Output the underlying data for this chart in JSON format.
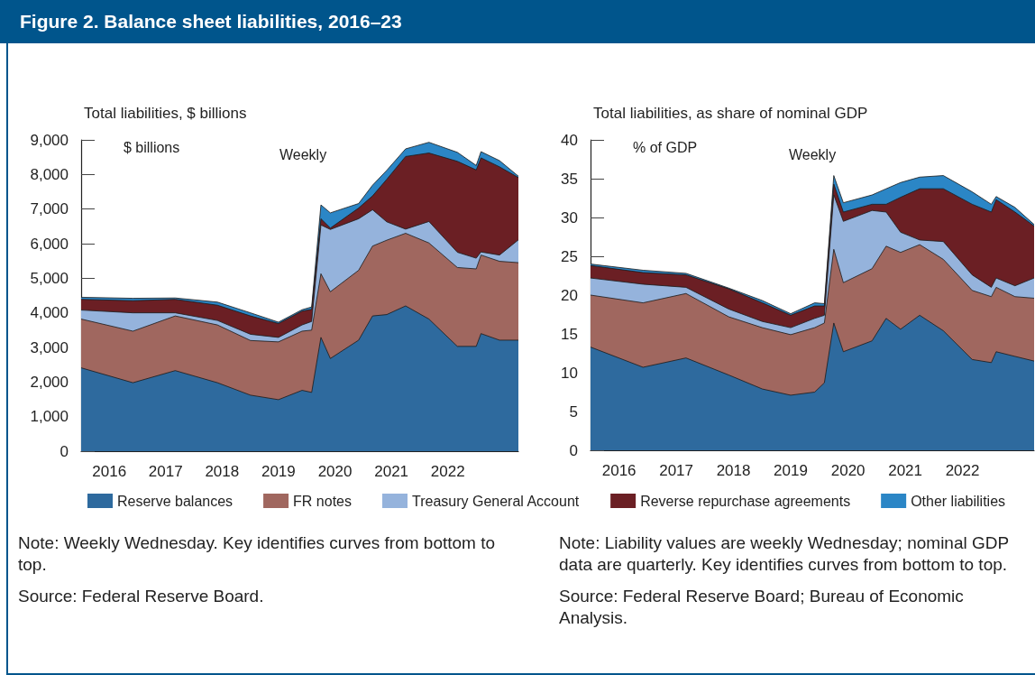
{
  "chart_data": [
    {
      "type": "area",
      "title": "Figure 2. Balance sheet liabilities, 2016–23",
      "subtitle": "Total liabilities, $ billions",
      "ylabel": "$ billions",
      "stacked": true,
      "legend": "bottom",
      "grid": false,
      "annotations": [
        "Weekly",
        "Note: Weekly Wednesday. Key identifies curves from bottom to top.",
        "Source: Federal Reserve Board."
      ],
      "x": [
        "2016-01",
        "2016-12",
        "2017-09",
        "2018-06",
        "2019-01",
        "2019-07",
        "2019-12",
        "2020-02",
        "2020-04",
        "2020-06",
        "2020-12",
        "2021-03",
        "2021-06",
        "2021-10",
        "2022-03",
        "2022-09",
        "2023-01",
        "2023-02",
        "2023-06",
        "2023-10"
      ],
      "xlim": [
        "2016-01",
        "2023-10"
      ],
      "xticks": [
        {
          "value": "2016-07-01",
          "label": "2016"
        },
        {
          "value": "2017-07-01",
          "label": "2017"
        },
        {
          "value": "2018-07-01",
          "label": "2018"
        },
        {
          "value": "2019-07-01",
          "label": "2019"
        },
        {
          "value": "2020-07-01",
          "label": "2020"
        },
        {
          "value": "2021-07-01",
          "label": "2021"
        },
        {
          "value": "2022-07-01",
          "label": "2022"
        },
        {
          "value": "2017-01-01",
          "label": null
        },
        {
          "value": "2018-01-01",
          "label": null
        },
        {
          "value": "2019-01-01",
          "label": null
        },
        {
          "value": "2020-01-01",
          "label": null
        },
        {
          "value": "2021-01-01",
          "label": null
        },
        {
          "value": "2022-01-01",
          "label": null
        },
        {
          "value": "2023-01-01",
          "label": null
        }
      ],
      "ylim": [
        0,
        9000
      ],
      "yticks": [
        0,
        {
          "value": 1000,
          "label": "1,000"
        },
        {
          "value": 2000,
          "label": "2,000"
        },
        {
          "value": 3000,
          "label": "3,000"
        },
        {
          "value": 4000,
          "label": "4,000"
        },
        {
          "value": 5000,
          "label": "5,000"
        },
        {
          "value": 6000,
          "label": "6,000"
        },
        {
          "value": 7000,
          "label": "7,000"
        },
        {
          "value": 8000,
          "label": "8,000"
        },
        {
          "value": 9000,
          "label": "9,000"
        }
      ],
      "series": [
        {
          "name": "Reserve balances",
          "color": "#2e6a9e",
          "values": [
            2410,
            1980,
            2330,
            1980,
            1620,
            1490,
            1760,
            1700,
            3290,
            2680,
            3210,
            3910,
            3950,
            4200,
            3820,
            3030,
            3030,
            3400,
            3210,
            3210
          ]
        },
        {
          "name": "FR notes",
          "color": "#a0675f",
          "values": [
            1410,
            1490,
            1580,
            1670,
            1580,
            1670,
            1710,
            1800,
            1840,
            1930,
            2020,
            2020,
            2150,
            2100,
            2200,
            2280,
            2240,
            2270,
            2280,
            2240
          ]
        },
        {
          "name": "Treasury General Account",
          "color": "#95b3dc",
          "values": [
            260,
            530,
            90,
            130,
            180,
            130,
            180,
            250,
            1410,
            1800,
            1490,
            1050,
            530,
            120,
            620,
            440,
            310,
            90,
            180,
            660
          ]
        },
        {
          "name": "Reverse repurchase agreements",
          "color": "#6b1f24",
          "values": [
            310,
            350,
            390,
            440,
            530,
            400,
            400,
            350,
            180,
            40,
            310,
            400,
            1230,
            2100,
            1980,
            2630,
            2550,
            2720,
            2550,
            1800
          ]
        },
        {
          "name": "Other liabilities",
          "color": "#2b86c6",
          "values": [
            60,
            70,
            40,
            90,
            90,
            40,
            40,
            70,
            400,
            440,
            130,
            310,
            260,
            220,
            310,
            260,
            130,
            180,
            180,
            40
          ]
        }
      ]
    },
    {
      "type": "area",
      "subtitle": "Total liabilities, as share of nominal GDP",
      "ylabel": "% of GDP",
      "stacked": true,
      "grid": false,
      "annotations": [
        "Weekly",
        "Note: Liability values are weekly Wednesday; nominal GDP data are quarterly. Key identifies curves from bottom to top.",
        "Source: Federal Reserve Board; Bureau of Economic Analysis."
      ],
      "x": [
        "2016-01",
        "2016-12",
        "2017-09",
        "2018-06",
        "2019-01",
        "2019-07",
        "2019-12",
        "2020-02",
        "2020-04",
        "2020-06",
        "2020-12",
        "2021-03",
        "2021-06",
        "2021-10",
        "2022-03",
        "2022-09",
        "2023-01",
        "2023-02",
        "2023-06",
        "2023-10"
      ],
      "xlim": [
        "2016-01",
        "2023-10"
      ],
      "xticks": [
        {
          "value": "2016-07-01",
          "label": "2016"
        },
        {
          "value": "2017-07-01",
          "label": "2017"
        },
        {
          "value": "2018-07-01",
          "label": "2018"
        },
        {
          "value": "2019-07-01",
          "label": "2019"
        },
        {
          "value": "2020-07-01",
          "label": "2020"
        },
        {
          "value": "2021-07-01",
          "label": "2021"
        },
        {
          "value": "2022-07-01",
          "label": "2022"
        },
        {
          "value": "2017-01-01",
          "label": null
        },
        {
          "value": "2018-01-01",
          "label": null
        },
        {
          "value": "2019-01-01",
          "label": null
        },
        {
          "value": "2020-01-01",
          "label": null
        },
        {
          "value": "2021-01-01",
          "label": null
        },
        {
          "value": "2022-01-01",
          "label": null
        },
        {
          "value": "2023-01-01",
          "label": null
        }
      ],
      "ylim": [
        0,
        40
      ],
      "yticks": [
        0,
        5,
        10,
        15,
        20,
        25,
        30,
        35,
        40
      ],
      "series": [
        {
          "color": "#2e6a9e",
          "values": [
            13.3,
            10.7,
            11.9,
            9.7,
            7.9,
            7.1,
            7.5,
            8.7,
            16.4,
            12.7,
            14.1,
            17.0,
            15.6,
            17.4,
            15.4,
            11.7,
            11.3,
            12.7,
            12.1,
            11.5
          ]
        },
        {
          "color": "#a0675f",
          "values": [
            6.7,
            8.3,
            8.3,
            7.5,
            7.9,
            7.8,
            8.3,
            7.7,
            9.5,
            8.9,
            9.3,
            9.3,
            9.9,
            9.1,
            9.2,
            8.9,
            8.5,
            8.3,
            7.7,
            8.1
          ]
        },
        {
          "color": "#95b3dc",
          "values": [
            2.2,
            2.4,
            0.8,
            1.0,
            0.8,
            0.9,
            1.2,
            1.0,
            7.0,
            7.9,
            7.5,
            4.4,
            2.6,
            0.6,
            2.3,
            2.0,
            1.2,
            1.2,
            1.4,
            2.6
          ]
        },
        {
          "color": "#6b1f24",
          "values": [
            1.6,
            1.5,
            1.6,
            2.6,
            2.4,
            1.6,
            1.6,
            1.2,
            1.4,
            1.2,
            0.8,
            1.0,
            4.5,
            6.6,
            6.8,
            9.1,
            9.7,
            10.1,
            9.5,
            6.7
          ]
        },
        {
          "color": "#2b86c6",
          "values": [
            0.2,
            0.3,
            0.2,
            0.1,
            0.3,
            0.2,
            0.4,
            0.3,
            1.1,
            1.2,
            1.2,
            2.0,
            1.9,
            1.5,
            1.7,
            1.6,
            1.0,
            0.4,
            0.6,
            0.2
          ]
        }
      ]
    }
  ]
}
